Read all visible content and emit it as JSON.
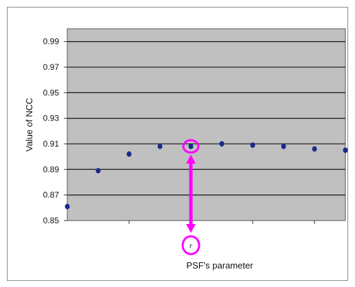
{
  "chart_data": {
    "type": "scatter",
    "xlabel": "PSF's parameter",
    "ylabel": "Value of NCC",
    "ylim": [
      0.85,
      1.0
    ],
    "yticks": [
      "0.99",
      "0.97",
      "0.95",
      "0.93",
      "0.91",
      "0.89",
      "0.87",
      "0.85"
    ],
    "grid": true,
    "x": [
      1,
      2,
      3,
      4,
      5,
      6,
      7,
      8,
      9,
      10
    ],
    "values": [
      0.861,
      0.889,
      0.902,
      0.908,
      0.908,
      0.91,
      0.909,
      0.908,
      0.906,
      0.905
    ],
    "marker_color": "#1a2a8c",
    "plot_bg": "#c0c0c0",
    "annotation": {
      "point_index": 4,
      "label": "r",
      "color": "#ff00ff"
    }
  }
}
